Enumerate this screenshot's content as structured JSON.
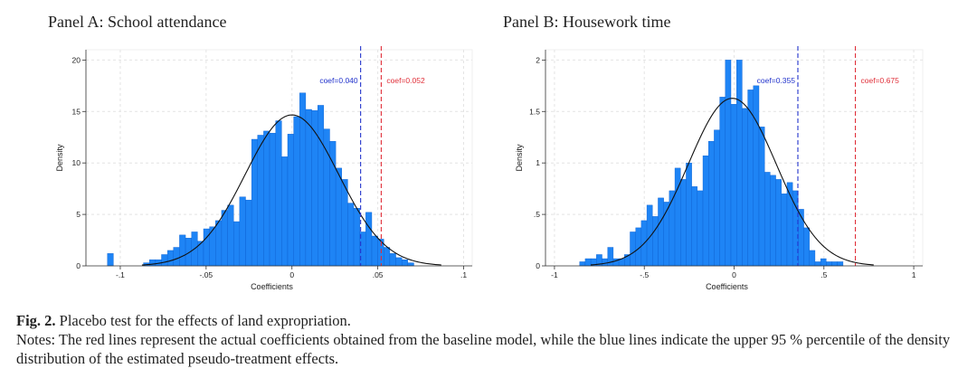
{
  "caption": {
    "label": "Fig. 2.",
    "title": "Placebo test for the effects of land expropriation.",
    "notes": "Notes: The red lines represent the actual coefficients obtained from the baseline model, while the blue lines indicate the upper 95 % percentile of the density distribution of the estimated pseudo-treatment effects."
  },
  "colors": {
    "bar": "#1e84f5",
    "bar_edge": "#0b5fd0",
    "curve": "#111111",
    "red_line": "#e0303a",
    "blue_line": "#2233cc",
    "grid": "#e4e4e4"
  },
  "chart_data": [
    {
      "type": "bar",
      "title": "Panel A: School attendance",
      "xlabel": "Coefficients",
      "ylabel": "Density",
      "xlim": [
        -0.12,
        0.105
      ],
      "ylim": [
        0,
        21
      ],
      "xticks": [
        -0.1,
        -0.05,
        0,
        0.05,
        0.1
      ],
      "xtick_labels": [
        "-.1",
        "-.05",
        "0",
        ".05",
        ".1"
      ],
      "yticks": [
        0,
        5,
        10,
        15,
        20
      ],
      "ytick_labels": [
        "0",
        "5",
        "10",
        "15",
        "20"
      ],
      "grid": true,
      "bin_start": -0.1075,
      "bin_width": 0.0035,
      "values": [
        1.2,
        0,
        0,
        0,
        0,
        0,
        0.3,
        0.6,
        0.6,
        1.1,
        1.5,
        1.8,
        3.0,
        2.7,
        3.3,
        2.4,
        3.6,
        3.8,
        4.4,
        5.4,
        5.9,
        4.3,
        6.7,
        6.4,
        12.3,
        12.7,
        13.1,
        12.9,
        14.1,
        10.6,
        12.8,
        14.5,
        16.8,
        15.2,
        15.1,
        15.6,
        13.3,
        12.1,
        9.5,
        8.4,
        6.1,
        5.6,
        3.3,
        5.2,
        2.9,
        2.6,
        1.8,
        1.2,
        0.8,
        0.6,
        0.3
      ],
      "normal_curve": {
        "mean": 0.0,
        "sd": 0.0272
      },
      "vlines": [
        {
          "x": 0.04,
          "label": "coef=0.040",
          "color": "blue"
        },
        {
          "x": 0.052,
          "label": "coef=0.052",
          "color": "red"
        }
      ]
    },
    {
      "type": "bar",
      "title": "Panel B: Housework time",
      "xlabel": "Coefficients",
      "ylabel": "Density",
      "xlim": [
        -1.05,
        1.05
      ],
      "ylim": [
        0,
        2.1
      ],
      "xticks": [
        -1,
        -0.5,
        0,
        0.5,
        1
      ],
      "xtick_labels": [
        "-1",
        "-.5",
        "0",
        ".5",
        "1"
      ],
      "yticks": [
        0,
        0.5,
        1,
        1.5,
        2
      ],
      "ytick_labels": [
        "0",
        ".5",
        "1",
        "1.5",
        "2"
      ],
      "grid": true,
      "bin_start": -0.86,
      "bin_width": 0.0312,
      "values": [
        0.04,
        0.07,
        0.07,
        0.11,
        0.07,
        0.18,
        0.07,
        0.07,
        0.11,
        0.33,
        0.37,
        0.44,
        0.59,
        0.48,
        0.66,
        0.62,
        0.73,
        0.95,
        0.84,
        1.0,
        0.77,
        0.73,
        1.07,
        1.21,
        1.32,
        1.64,
        2.0,
        1.57,
        2.0,
        1.53,
        1.71,
        1.75,
        1.35,
        0.91,
        0.88,
        0.84,
        0.7,
        0.81,
        0.73,
        0.55,
        0.37,
        0.15,
        0.04,
        0.07,
        0.04,
        0.04,
        0.04
      ],
      "normal_curve": {
        "mean": -0.01,
        "sd": 0.245
      },
      "vlines": [
        {
          "x": 0.355,
          "label": "coef=0.355",
          "color": "blue"
        },
        {
          "x": 0.675,
          "label": "coef=0.675",
          "color": "red"
        }
      ]
    }
  ]
}
